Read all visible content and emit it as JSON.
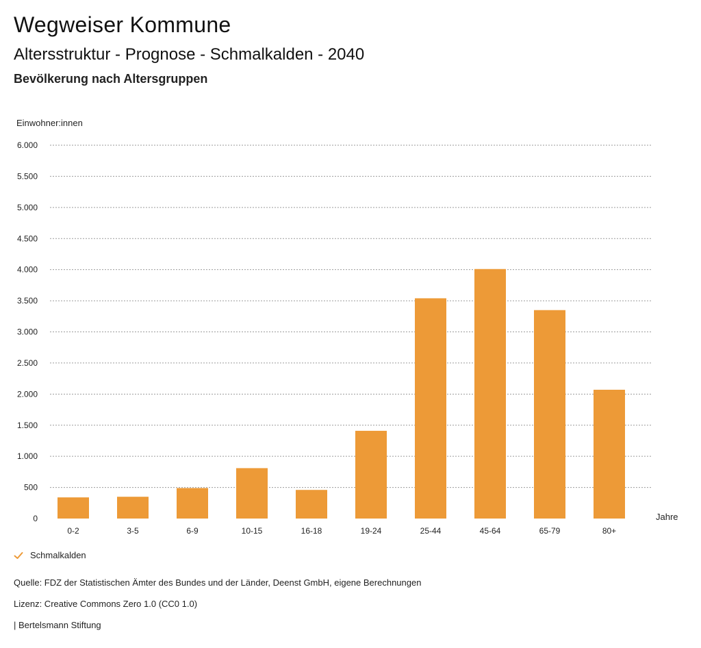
{
  "header": {
    "site_title": "Wegweiser Kommune",
    "chart_title": "Altersstruktur - Prognose - Schmalkalden - 2040",
    "chart_subtitle": "Bevölkerung nach Altersgruppen"
  },
  "chart_data": {
    "type": "bar",
    "ylabel": "Einwohner:innen",
    "xlabel": "Jahre",
    "categories": [
      "0-2",
      "3-5",
      "6-9",
      "10-15",
      "16-18",
      "19-24",
      "25-44",
      "45-64",
      "65-79",
      "80+"
    ],
    "series": [
      {
        "name": "Schmalkalden",
        "values": [
          340,
          350,
          490,
          810,
          460,
          1410,
          3540,
          4010,
          3350,
          2070
        ]
      }
    ],
    "ylim": [
      0,
      6000
    ],
    "yticks": [
      0,
      500,
      1000,
      1500,
      2000,
      2500,
      3000,
      3500,
      4000,
      4500,
      5000,
      5500,
      6000
    ],
    "ytick_labels": [
      "0",
      "500",
      "1.000",
      "1.500",
      "2.000",
      "2.500",
      "3.000",
      "3.500",
      "4.000",
      "4.500",
      "5.000",
      "5.500",
      "6.000"
    ],
    "grid": true,
    "legend_position": "bottom-left",
    "bar_color": "#ED9A37"
  },
  "legend": {
    "label": "Schmalkalden",
    "icon": "check-icon",
    "color": "#ED9A37"
  },
  "footer": {
    "source": "Quelle: FDZ der Statistischen Ämter des Bundes und der Länder, Deenst GmbH, eigene Berechnungen",
    "license": "Lizenz: Creative Commons Zero 1.0 (CC0 1.0)",
    "brand": "| Bertelsmann Stiftung"
  }
}
